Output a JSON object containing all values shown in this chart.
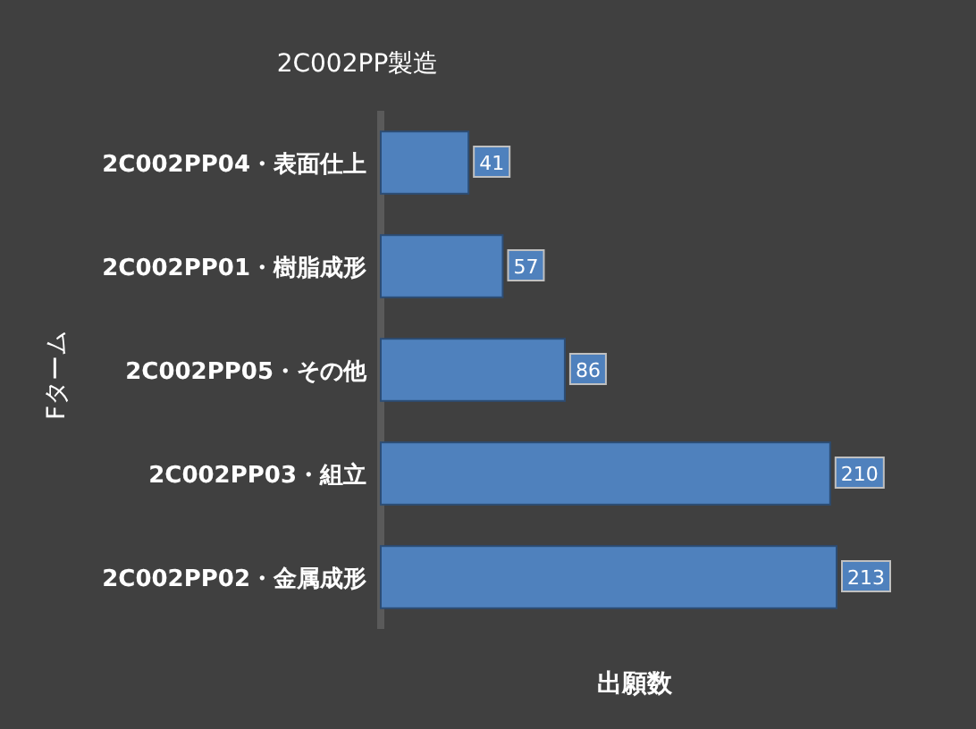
{
  "chart_data": {
    "type": "bar",
    "orientation": "horizontal",
    "title": "2C002PP製造",
    "xlabel": "出願数",
    "ylabel": "Fターム",
    "categories": [
      "2C002PP04・表面仕上",
      "2C002PP01・樹脂成形",
      "2C002PP05・その他",
      "2C002PP03・組立",
      "2C002PP02・金属成形"
    ],
    "values": [
      41,
      57,
      86,
      210,
      213
    ],
    "color": "#4f81bd",
    "data_labels": true
  }
}
